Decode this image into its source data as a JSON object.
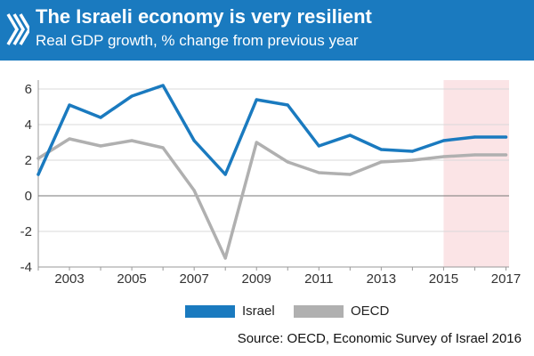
{
  "header": {
    "title": "The Israeli economy is very resilient",
    "subtitle": "Real GDP growth, % change from previous year",
    "logo_icon": "oecd-logo-icon",
    "background_color": "#1a7abf"
  },
  "chart_data": {
    "type": "line",
    "title": "The Israeli economy is very resilient",
    "subtitle": "Real GDP growth, % change from previous year",
    "xlabel": "",
    "ylabel": "",
    "x": [
      2002,
      2003,
      2004,
      2005,
      2006,
      2007,
      2008,
      2009,
      2010,
      2011,
      2012,
      2013,
      2014,
      2015,
      2016,
      2017
    ],
    "xticks": [
      2003,
      2005,
      2007,
      2009,
      2011,
      2013,
      2015,
      2017
    ],
    "xlim": [
      2002,
      2017.1
    ],
    "yticks": [
      -4,
      -2,
      0,
      2,
      4,
      6
    ],
    "ylim": [
      -4,
      6.5
    ],
    "grid": true,
    "projection_shading": {
      "from": 2015,
      "to": 2017.1,
      "color": "#fbe4e6"
    },
    "series": [
      {
        "name": "Israel",
        "color": "#1a7abf",
        "values": [
          1.2,
          5.1,
          4.4,
          5.6,
          6.2,
          3.1,
          1.2,
          5.4,
          5.1,
          2.8,
          3.4,
          2.6,
          2.5,
          3.1,
          3.3,
          3.3
        ]
      },
      {
        "name": "OECD",
        "color": "#b0b0b0",
        "values": [
          2.1,
          3.2,
          2.8,
          3.1,
          2.7,
          0.3,
          -3.5,
          3.0,
          1.9,
          1.3,
          1.2,
          1.9,
          2.0,
          2.2,
          2.3,
          2.3
        ]
      }
    ],
    "legend_position": "bottom"
  },
  "legend": {
    "items": [
      {
        "label": "Israel",
        "color": "#1a7abf"
      },
      {
        "label": "OECD",
        "color": "#b0b0b0"
      }
    ]
  },
  "footer": {
    "source": "Source: OECD, Economic Survey of Israel 2016"
  }
}
